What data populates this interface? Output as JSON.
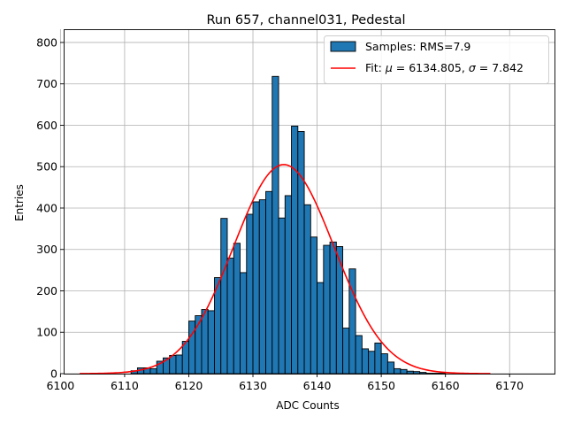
{
  "chart_data": {
    "type": "bar",
    "title": "Run 657, channel031, Pedestal",
    "xlabel": "ADC Counts",
    "ylabel": "Entries",
    "xlim": [
      6100.5,
      6177
    ],
    "ylim": [
      0,
      832
    ],
    "xticks": [
      6100,
      6110,
      6120,
      6130,
      6140,
      6150,
      6160,
      6170
    ],
    "yticks": [
      0,
      100,
      200,
      300,
      400,
      500,
      600,
      700,
      800
    ],
    "grid": true,
    "legend_position": "top-right",
    "colors": {
      "bars": "#1f77b4",
      "bar_edge": "#000000",
      "fit": "#ff0000",
      "grid": "#b0b0b0"
    },
    "histogram": {
      "name": "Samples: RMS=7.9",
      "bin_start": 6103,
      "bin_width": 1,
      "counts": [
        0,
        0,
        0,
        0,
        0,
        0,
        0,
        0,
        7,
        14,
        14,
        12,
        30,
        38,
        44,
        45,
        78,
        127,
        140,
        155,
        152,
        232,
        375,
        279,
        315,
        244,
        385,
        415,
        420,
        440,
        718,
        376,
        430,
        598,
        585,
        408,
        330,
        220,
        310,
        318,
        307,
        110,
        253,
        92,
        60,
        54,
        74,
        48,
        28,
        12,
        10,
        6,
        5,
        3,
        1,
        1,
        1,
        0,
        0,
        0,
        0,
        0,
        0,
        0
      ]
    },
    "fit": {
      "name": "Fit",
      "label_prefix": "Fit: ",
      "mu_symbol": "μ",
      "sigma_symbol": "σ",
      "mu": 6134.805,
      "sigma": 7.842,
      "amplitude": 505,
      "x_range": [
        6103,
        6167
      ],
      "mu_text": "6134.805",
      "sigma_text": "7.842"
    }
  }
}
